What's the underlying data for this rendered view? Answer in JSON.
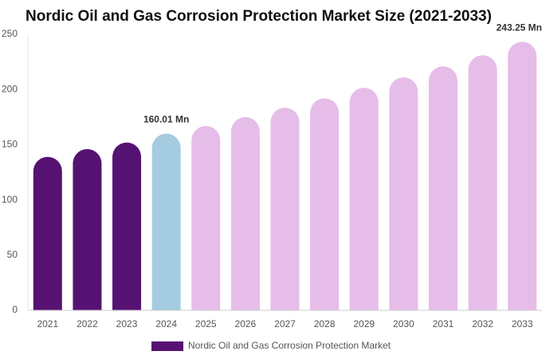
{
  "chart_data": {
    "type": "bar",
    "title": "Nordic Oil and Gas Corrosion Protection Market Size (2021-2033)",
    "categories": [
      "2021",
      "2022",
      "2023",
      "2024",
      "2025",
      "2026",
      "2027",
      "2028",
      "2029",
      "2030",
      "2031",
      "2032",
      "2033"
    ],
    "series": [
      {
        "name": "Nordic Oil and Gas Corrosion Protection Market",
        "color": "#561272",
        "values": [
          139,
          146,
          152,
          160.01,
          167,
          175,
          183.5,
          192,
          201.6,
          211,
          221,
          231,
          243.25
        ],
        "value_labels": [
          null,
          null,
          null,
          "160.01 Mn",
          null,
          null,
          null,
          null,
          null,
          null,
          null,
          null,
          "243.25 Mn"
        ],
        "colors": [
          "#561272",
          "#561272",
          "#561272",
          "#a4cbe0",
          "#e6bde8",
          "#e6bde8",
          "#e6bde8",
          "#e6bde8",
          "#e6bde8",
          "#e6bde8",
          "#e6bde8",
          "#e6bde8",
          "#e6bde8"
        ]
      }
    ],
    "ylim": [
      0,
      250
    ],
    "yticks": [
      0,
      50,
      100,
      150,
      200,
      250
    ],
    "grid": false
  }
}
